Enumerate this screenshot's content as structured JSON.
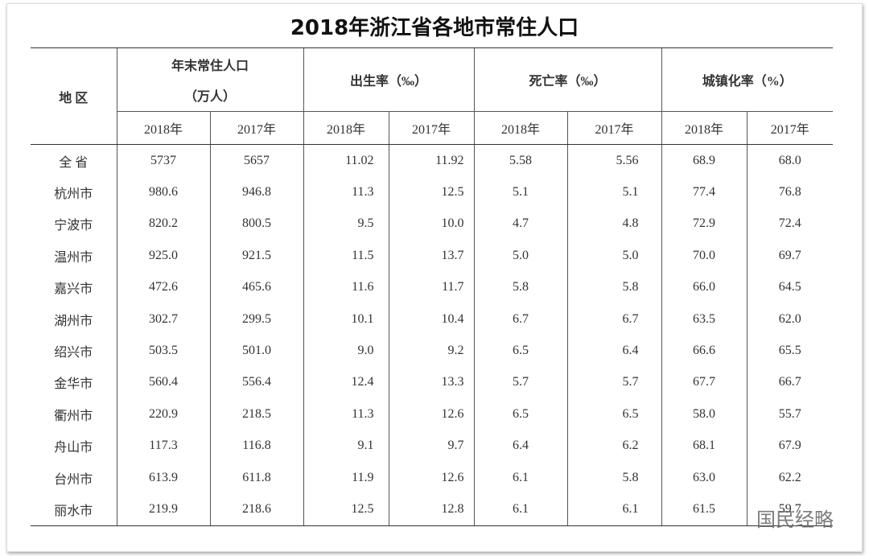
{
  "title": "2018年浙江省各地市常住人口",
  "table": {
    "region_header": "地 区",
    "groups": [
      {
        "label": "年末常住人口",
        "sub_label": "（万人）"
      },
      {
        "label": "出生率（‰）"
      },
      {
        "label": "死亡率（‰）"
      },
      {
        "label": "城镇化率（%）"
      }
    ],
    "years": [
      "2018年",
      "2017年",
      "2018年",
      "2017年",
      "2018年",
      "2017年",
      "2018年",
      "2017年"
    ],
    "rows": [
      [
        "全 省",
        "5737",
        "5657",
        "11.02",
        "11.92",
        "5.58",
        "5.56",
        "68.9",
        "68.0"
      ],
      [
        "杭州市",
        "980.6",
        "946.8",
        "11.3",
        "12.5",
        "5.1",
        "5.1",
        "77.4",
        "76.8"
      ],
      [
        "宁波市",
        "820.2",
        "800.5",
        "9.5",
        "10.0",
        "4.7",
        "4.8",
        "72.9",
        "72.4"
      ],
      [
        "温州市",
        "925.0",
        "921.5",
        "11.5",
        "13.7",
        "5.0",
        "5.0",
        "70.0",
        "69.7"
      ],
      [
        "嘉兴市",
        "472.6",
        "465.6",
        "11.6",
        "11.7",
        "5.8",
        "5.8",
        "66.0",
        "64.5"
      ],
      [
        "湖州市",
        "302.7",
        "299.5",
        "10.1",
        "10.4",
        "6.7",
        "6.7",
        "63.5",
        "62.0"
      ],
      [
        "绍兴市",
        "503.5",
        "501.0",
        "9.0",
        "9.2",
        "6.5",
        "6.4",
        "66.6",
        "65.5"
      ],
      [
        "金华市",
        "560.4",
        "556.4",
        "12.4",
        "13.3",
        "5.7",
        "5.7",
        "67.7",
        "66.7"
      ],
      [
        "衢州市",
        "220.9",
        "218.5",
        "11.3",
        "12.6",
        "6.5",
        "6.5",
        "58.0",
        "55.7"
      ],
      [
        "舟山市",
        "117.3",
        "116.8",
        "9.1",
        "9.7",
        "6.4",
        "6.2",
        "68.1",
        "67.9"
      ],
      [
        "台州市",
        "613.9",
        "611.8",
        "11.9",
        "12.6",
        "6.1",
        "5.8",
        "63.0",
        "62.2"
      ],
      [
        "丽水市",
        "219.9",
        "218.6",
        "12.5",
        "12.8",
        "6.1",
        "6.1",
        "61.5",
        "59.7"
      ]
    ]
  },
  "watermark": "国民经略"
}
